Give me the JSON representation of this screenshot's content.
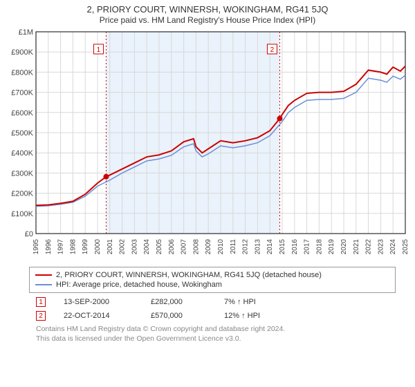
{
  "title": "2, PRIORY COURT, WINNERSH, WOKINGHAM, RG41 5JQ",
  "subtitle": "Price paid vs. HM Land Registry's House Price Index (HPI)",
  "chart": {
    "type": "line",
    "background_color": "#ffffff",
    "grid_color": "#d8d8d8",
    "axis_color": "#000000",
    "highlight_band_color": "#eaf2fb",
    "marker_line_color": "#cc0000",
    "title_fontsize": 13,
    "label_fontsize": 11,
    "x_years": [
      1995,
      1996,
      1997,
      1998,
      1999,
      2000,
      2001,
      2002,
      2003,
      2004,
      2005,
      2006,
      2007,
      2008,
      2009,
      2010,
      2011,
      2012,
      2013,
      2014,
      2015,
      2016,
      2017,
      2018,
      2019,
      2020,
      2021,
      2022,
      2023,
      2024,
      2025
    ],
    "ylim": [
      0,
      1000000
    ],
    "ytick_step": 100000,
    "ytick_labels": [
      "£0",
      "£100K",
      "£200K",
      "£300K",
      "£400K",
      "£500K",
      "£600K",
      "£700K",
      "£800K",
      "£900K",
      "£1M"
    ],
    "series": [
      {
        "name": "price_paid",
        "color": "#cc0000",
        "line_width": 2,
        "data": [
          [
            1995,
            140000
          ],
          [
            1996,
            142000
          ],
          [
            1997,
            150000
          ],
          [
            1998,
            160000
          ],
          [
            1999,
            195000
          ],
          [
            2000,
            250000
          ],
          [
            2000.7,
            282000
          ],
          [
            2001,
            290000
          ],
          [
            2002,
            320000
          ],
          [
            2003,
            350000
          ],
          [
            2004,
            380000
          ],
          [
            2005,
            390000
          ],
          [
            2006,
            410000
          ],
          [
            2007,
            455000
          ],
          [
            2007.8,
            470000
          ],
          [
            2008,
            430000
          ],
          [
            2008.5,
            400000
          ],
          [
            2009,
            420000
          ],
          [
            2010,
            460000
          ],
          [
            2011,
            450000
          ],
          [
            2012,
            460000
          ],
          [
            2013,
            475000
          ],
          [
            2014,
            510000
          ],
          [
            2014.8,
            570000
          ],
          [
            2015,
            590000
          ],
          [
            2015.5,
            635000
          ],
          [
            2016,
            660000
          ],
          [
            2017,
            695000
          ],
          [
            2018,
            700000
          ],
          [
            2019,
            700000
          ],
          [
            2020,
            705000
          ],
          [
            2021,
            740000
          ],
          [
            2022,
            810000
          ],
          [
            2023,
            800000
          ],
          [
            2023.5,
            790000
          ],
          [
            2024,
            825000
          ],
          [
            2024.6,
            805000
          ],
          [
            2025,
            830000
          ]
        ]
      },
      {
        "name": "hpi",
        "color": "#6a8fd4",
        "line_width": 1.5,
        "data": [
          [
            1995,
            135000
          ],
          [
            1996,
            138000
          ],
          [
            1997,
            145000
          ],
          [
            1998,
            155000
          ],
          [
            1999,
            185000
          ],
          [
            2000,
            235000
          ],
          [
            2001,
            265000
          ],
          [
            2002,
            300000
          ],
          [
            2003,
            330000
          ],
          [
            2004,
            360000
          ],
          [
            2005,
            370000
          ],
          [
            2006,
            388000
          ],
          [
            2007,
            430000
          ],
          [
            2007.8,
            445000
          ],
          [
            2008,
            410000
          ],
          [
            2008.5,
            380000
          ],
          [
            2009,
            395000
          ],
          [
            2010,
            435000
          ],
          [
            2011,
            425000
          ],
          [
            2012,
            435000
          ],
          [
            2013,
            450000
          ],
          [
            2014,
            485000
          ],
          [
            2015,
            555000
          ],
          [
            2015.5,
            600000
          ],
          [
            2016,
            625000
          ],
          [
            2017,
            660000
          ],
          [
            2018,
            665000
          ],
          [
            2019,
            665000
          ],
          [
            2020,
            670000
          ],
          [
            2021,
            700000
          ],
          [
            2022,
            770000
          ],
          [
            2023,
            760000
          ],
          [
            2023.5,
            750000
          ],
          [
            2024,
            780000
          ],
          [
            2024.6,
            765000
          ],
          [
            2025,
            785000
          ]
        ]
      }
    ],
    "markers": [
      {
        "id": "1",
        "x": 2000.7,
        "y": 282000
      },
      {
        "id": "2",
        "x": 2014.8,
        "y": 570000
      }
    ],
    "highlight_band": {
      "x_start": 2000.7,
      "x_end": 2014.8
    }
  },
  "legend": {
    "series1": "2, PRIORY COURT, WINNERSH, WOKINGHAM, RG41 5JQ (detached house)",
    "series2": "HPI: Average price, detached house, Wokingham"
  },
  "marker_rows": [
    {
      "id": "1",
      "date": "13-SEP-2000",
      "price": "£282,000",
      "delta": "7% ↑ HPI"
    },
    {
      "id": "2",
      "date": "22-OCT-2014",
      "price": "£570,000",
      "delta": "12% ↑ HPI"
    }
  ],
  "footer_line1": "Contains HM Land Registry data © Crown copyright and database right 2024.",
  "footer_line2": "This data is licensed under the Open Government Licence v3.0."
}
